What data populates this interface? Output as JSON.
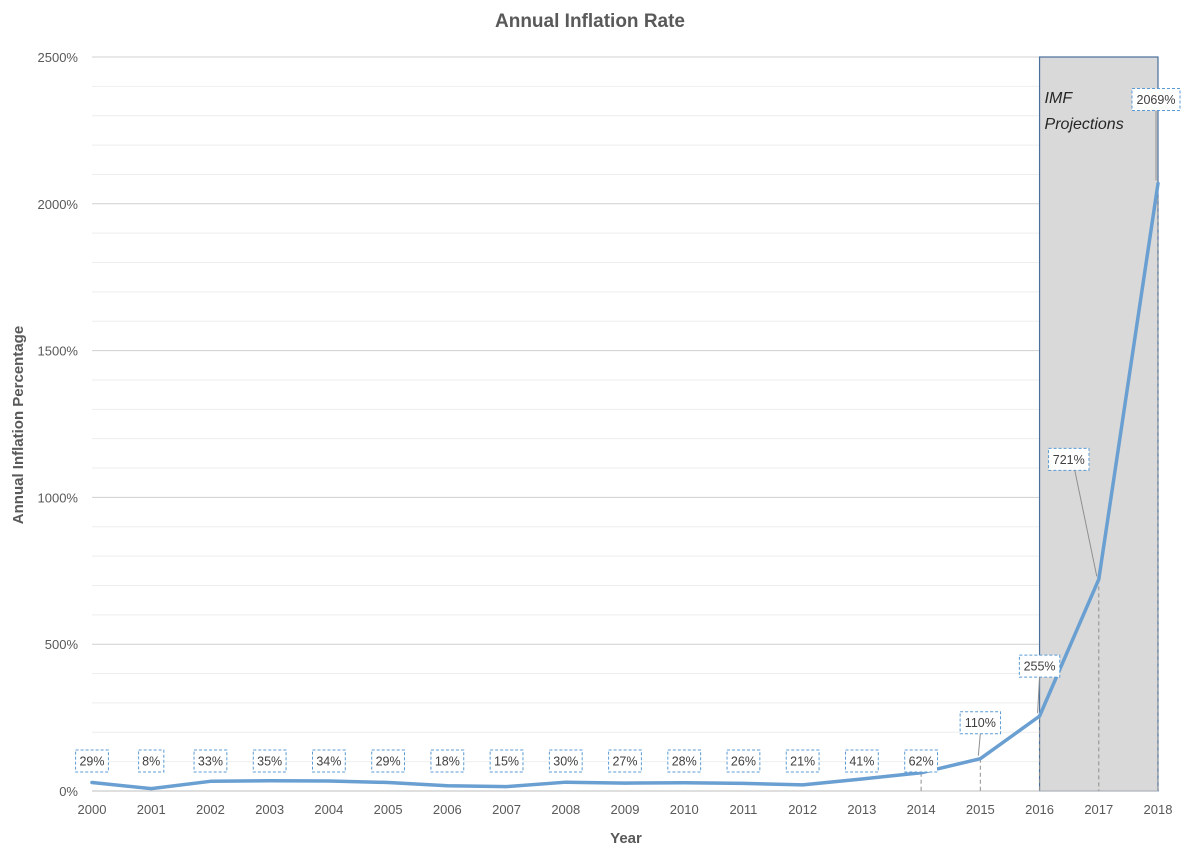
{
  "chart_data": {
    "type": "line",
    "title": "Annual Inflation Rate",
    "xlabel": "Year",
    "ylabel": "Annual  Inflation Percentage",
    "x": [
      "2000",
      "2001",
      "2002",
      "2003",
      "2004",
      "2005",
      "2006",
      "2007",
      "2008",
      "2009",
      "2010",
      "2011",
      "2012",
      "2013",
      "2014",
      "2015",
      "2016",
      "2017",
      "2018"
    ],
    "series": [
      {
        "values": [
          29,
          8,
          33,
          35,
          34,
          29,
          18,
          15,
          30,
          27,
          28,
          26,
          21,
          41,
          62,
          110,
          255,
          721,
          2069
        ],
        "labels": [
          "29%",
          "8%",
          "33%",
          "35%",
          "34%",
          "29%",
          "18%",
          "15%",
          "30%",
          "27%",
          "28%",
          "26%",
          "21%",
          "41%",
          "62%",
          "110%",
          "255%",
          "721%",
          "2069%"
        ],
        "color": "#6a9fd2"
      }
    ],
    "ylim": [
      0,
      2500
    ],
    "yticks": [
      0,
      500,
      1000,
      1500,
      2000,
      2500
    ],
    "ytick_labels": [
      "0%",
      "500%",
      "1000%",
      "1500%",
      "2000%",
      "2500%"
    ],
    "grid": true,
    "legend": "none",
    "shaded_region": {
      "from": "2016",
      "to": "2018",
      "label_line1": "IMF",
      "label_line2": "Projections",
      "fill": "#d9d9d9",
      "border": "#4a6f9a"
    }
  }
}
